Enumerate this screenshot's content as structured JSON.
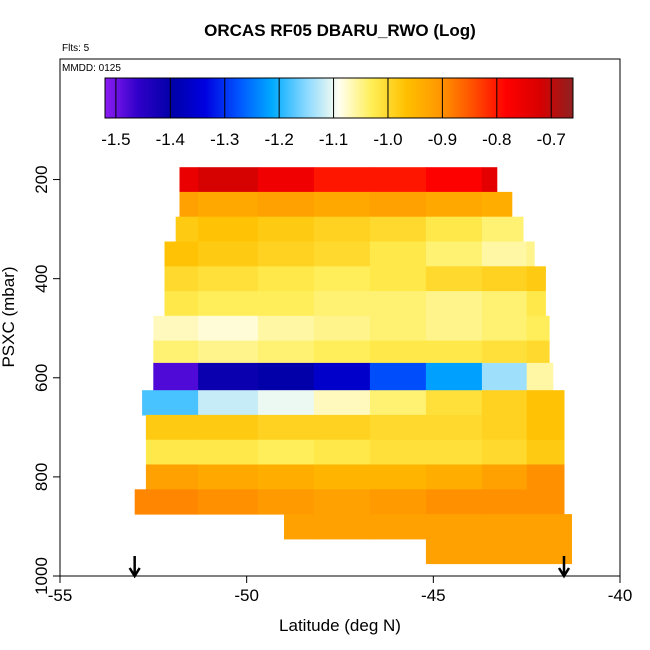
{
  "chart_data": {
    "type": "heatmap",
    "title": "ORCAS RF05 DBARU_RWO (Log)",
    "subtitle_flts": "Flts: 5",
    "subtitle_mmdd": "MMDD: 0125",
    "xlabel": "Latitude (deg N)",
    "ylabel": "PSXC (mbar)",
    "xlim": [
      -55,
      -40
    ],
    "ylim": [
      1000,
      100
    ],
    "x_ticks": [
      -55,
      -50,
      -45,
      -40
    ],
    "y_ticks": [
      200,
      400,
      600,
      800,
      1000
    ],
    "colorbar": {
      "min": -1.52,
      "max": -0.66,
      "tick_values": [
        -1.5,
        -1.4,
        -1.3,
        -1.2,
        -1.1,
        -1.0,
        -0.9,
        -0.8,
        -0.7
      ],
      "tick_labels": [
        "-1.5",
        "-1.4",
        "-1.3",
        "-1.2",
        "-1.1",
        "-1.0",
        "-0.9",
        "-0.8",
        "-0.7"
      ],
      "colors": [
        "#8b1cf2",
        "#2f00c8",
        "#0000a8",
        "#0000e0",
        "#0055ff",
        "#00aaff",
        "#88d8ff",
        "#fffff0",
        "#ffee55",
        "#ffc000",
        "#ff9800",
        "#ff5000",
        "#ff0000",
        "#d80000",
        "#902020"
      ]
    },
    "lat_edges": [
      -52.7,
      -51.3,
      -49.7,
      -48.2,
      -46.7,
      -45.2,
      -43.7,
      -42.5,
      -41.4
    ],
    "layers": [
      {
        "p_top": 175,
        "p_bot": 225,
        "lat_min": -51.8,
        "lat_max": -43.3,
        "values": [
          -0.75,
          -0.72,
          -0.76,
          -0.8,
          -0.8,
          -0.78,
          -0.74,
          -0.76
        ]
      },
      {
        "p_top": 225,
        "p_bot": 275,
        "lat_min": -51.8,
        "lat_max": -42.9,
        "values": [
          -0.92,
          -0.93,
          -0.92,
          -0.93,
          -0.92,
          -0.93,
          -0.94,
          -0.94
        ]
      },
      {
        "p_top": 275,
        "p_bot": 325,
        "lat_min": -51.9,
        "lat_max": -42.6,
        "values": [
          -0.98,
          -0.97,
          -0.98,
          -0.99,
          -1.0,
          -1.02,
          -1.04,
          -1.06
        ]
      },
      {
        "p_top": 325,
        "p_bot": 375,
        "lat_min": -52.2,
        "lat_max": -42.3,
        "values": [
          -0.97,
          -0.98,
          -0.99,
          -1.0,
          -1.02,
          -1.04,
          -1.06,
          -1.05
        ]
      },
      {
        "p_top": 375,
        "p_bot": 425,
        "lat_min": -52.2,
        "lat_max": -42.0,
        "values": [
          -1.0,
          -1.01,
          -1.02,
          -1.03,
          -1.02,
          -1.0,
          -0.99,
          -0.98
        ]
      },
      {
        "p_top": 425,
        "p_bot": 475,
        "lat_min": -52.2,
        "lat_max": -42.0,
        "values": [
          -1.02,
          -1.03,
          -1.03,
          -1.04,
          -1.04,
          -1.05,
          -1.04,
          -1.02
        ]
      },
      {
        "p_top": 475,
        "p_bot": 525,
        "lat_min": -52.5,
        "lat_max": -41.9,
        "values": [
          -1.07,
          -1.08,
          -1.06,
          -1.05,
          -1.04,
          -1.05,
          -1.04,
          -1.03
        ]
      },
      {
        "p_top": 525,
        "p_bot": 570,
        "lat_min": -52.5,
        "lat_max": -41.9,
        "values": [
          -1.04,
          -1.05,
          -1.04,
          -1.03,
          -1.02,
          -1.02,
          -1.01,
          -1.0
        ]
      },
      {
        "p_top": 570,
        "p_bot": 625,
        "lat_min": -52.5,
        "lat_max": -41.8,
        "values": [
          -1.48,
          -1.41,
          -1.4,
          -1.36,
          -1.28,
          -1.22,
          -1.14,
          -1.06
        ]
      },
      {
        "p_top": 625,
        "p_bot": 675,
        "lat_min": -52.8,
        "lat_max": -41.5,
        "values": [
          -1.18,
          -1.12,
          -1.1,
          -1.07,
          -1.04,
          -1.01,
          -0.99,
          -0.97
        ]
      },
      {
        "p_top": 675,
        "p_bot": 725,
        "lat_min": -52.7,
        "lat_max": -41.5,
        "values": [
          -0.98,
          -0.98,
          -0.99,
          -0.99,
          -1.0,
          -1.0,
          -0.99,
          -0.97
        ]
      },
      {
        "p_top": 725,
        "p_bot": 775,
        "lat_min": -52.7,
        "lat_max": -41.5,
        "values": [
          -1.02,
          -1.02,
          -1.03,
          -1.02,
          -1.01,
          -1.01,
          -1.0,
          -0.98
        ]
      },
      {
        "p_top": 775,
        "p_bot": 825,
        "lat_min": -52.7,
        "lat_max": -41.5,
        "values": [
          -0.92,
          -0.93,
          -0.94,
          -0.95,
          -0.95,
          -0.94,
          -0.92,
          -0.9
        ]
      },
      {
        "p_top": 825,
        "p_bot": 875,
        "lat_min": -53.0,
        "lat_max": -41.5,
        "values": [
          -0.89,
          -0.9,
          -0.91,
          -0.92,
          -0.91,
          -0.9,
          -0.9,
          -0.9
        ]
      },
      {
        "p_top": 875,
        "p_bot": 925,
        "lat_min": -49.0,
        "lat_max": -41.3,
        "values": [
          -0.92,
          -0.92,
          -0.92,
          -0.92,
          -0.92,
          -0.92,
          -0.92,
          -0.92
        ]
      },
      {
        "p_top": 925,
        "p_bot": 975,
        "lat_min": -45.2,
        "lat_max": -41.3,
        "values": [
          -0.92,
          -0.92,
          -0.92,
          -0.92,
          -0.92,
          -0.92,
          -0.92,
          -0.92
        ]
      }
    ],
    "arrows_lat": [
      -53.0,
      -41.5
    ]
  }
}
